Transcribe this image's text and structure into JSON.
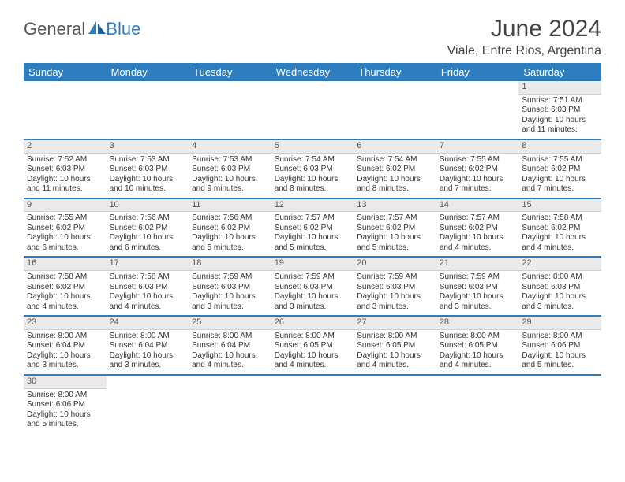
{
  "brand": {
    "part1": "General",
    "part2": "Blue",
    "icon_color": "#2e7dbf",
    "text1_color": "#555555"
  },
  "title": "June 2024",
  "location": "Viale, Entre Rios, Argentina",
  "colors": {
    "header_bg": "#2e7dbf",
    "header_fg": "#ffffff",
    "row_divider": "#2e7dbf"
  },
  "day_headers": [
    "Sunday",
    "Monday",
    "Tuesday",
    "Wednesday",
    "Thursday",
    "Friday",
    "Saturday"
  ],
  "weeks": [
    [
      null,
      null,
      null,
      null,
      null,
      null,
      {
        "n": "1",
        "sunrise": "Sunrise: 7:51 AM",
        "sunset": "Sunset: 6:03 PM",
        "day": "Daylight: 10 hours and 11 minutes."
      }
    ],
    [
      {
        "n": "2",
        "sunrise": "Sunrise: 7:52 AM",
        "sunset": "Sunset: 6:03 PM",
        "day": "Daylight: 10 hours and 11 minutes."
      },
      {
        "n": "3",
        "sunrise": "Sunrise: 7:53 AM",
        "sunset": "Sunset: 6:03 PM",
        "day": "Daylight: 10 hours and 10 minutes."
      },
      {
        "n": "4",
        "sunrise": "Sunrise: 7:53 AM",
        "sunset": "Sunset: 6:03 PM",
        "day": "Daylight: 10 hours and 9 minutes."
      },
      {
        "n": "5",
        "sunrise": "Sunrise: 7:54 AM",
        "sunset": "Sunset: 6:03 PM",
        "day": "Daylight: 10 hours and 8 minutes."
      },
      {
        "n": "6",
        "sunrise": "Sunrise: 7:54 AM",
        "sunset": "Sunset: 6:02 PM",
        "day": "Daylight: 10 hours and 8 minutes."
      },
      {
        "n": "7",
        "sunrise": "Sunrise: 7:55 AM",
        "sunset": "Sunset: 6:02 PM",
        "day": "Daylight: 10 hours and 7 minutes."
      },
      {
        "n": "8",
        "sunrise": "Sunrise: 7:55 AM",
        "sunset": "Sunset: 6:02 PM",
        "day": "Daylight: 10 hours and 7 minutes."
      }
    ],
    [
      {
        "n": "9",
        "sunrise": "Sunrise: 7:55 AM",
        "sunset": "Sunset: 6:02 PM",
        "day": "Daylight: 10 hours and 6 minutes."
      },
      {
        "n": "10",
        "sunrise": "Sunrise: 7:56 AM",
        "sunset": "Sunset: 6:02 PM",
        "day": "Daylight: 10 hours and 6 minutes."
      },
      {
        "n": "11",
        "sunrise": "Sunrise: 7:56 AM",
        "sunset": "Sunset: 6:02 PM",
        "day": "Daylight: 10 hours and 5 minutes."
      },
      {
        "n": "12",
        "sunrise": "Sunrise: 7:57 AM",
        "sunset": "Sunset: 6:02 PM",
        "day": "Daylight: 10 hours and 5 minutes."
      },
      {
        "n": "13",
        "sunrise": "Sunrise: 7:57 AM",
        "sunset": "Sunset: 6:02 PM",
        "day": "Daylight: 10 hours and 5 minutes."
      },
      {
        "n": "14",
        "sunrise": "Sunrise: 7:57 AM",
        "sunset": "Sunset: 6:02 PM",
        "day": "Daylight: 10 hours and 4 minutes."
      },
      {
        "n": "15",
        "sunrise": "Sunrise: 7:58 AM",
        "sunset": "Sunset: 6:02 PM",
        "day": "Daylight: 10 hours and 4 minutes."
      }
    ],
    [
      {
        "n": "16",
        "sunrise": "Sunrise: 7:58 AM",
        "sunset": "Sunset: 6:02 PM",
        "day": "Daylight: 10 hours and 4 minutes."
      },
      {
        "n": "17",
        "sunrise": "Sunrise: 7:58 AM",
        "sunset": "Sunset: 6:03 PM",
        "day": "Daylight: 10 hours and 4 minutes."
      },
      {
        "n": "18",
        "sunrise": "Sunrise: 7:59 AM",
        "sunset": "Sunset: 6:03 PM",
        "day": "Daylight: 10 hours and 3 minutes."
      },
      {
        "n": "19",
        "sunrise": "Sunrise: 7:59 AM",
        "sunset": "Sunset: 6:03 PM",
        "day": "Daylight: 10 hours and 3 minutes."
      },
      {
        "n": "20",
        "sunrise": "Sunrise: 7:59 AM",
        "sunset": "Sunset: 6:03 PM",
        "day": "Daylight: 10 hours and 3 minutes."
      },
      {
        "n": "21",
        "sunrise": "Sunrise: 7:59 AM",
        "sunset": "Sunset: 6:03 PM",
        "day": "Daylight: 10 hours and 3 minutes."
      },
      {
        "n": "22",
        "sunrise": "Sunrise: 8:00 AM",
        "sunset": "Sunset: 6:03 PM",
        "day": "Daylight: 10 hours and 3 minutes."
      }
    ],
    [
      {
        "n": "23",
        "sunrise": "Sunrise: 8:00 AM",
        "sunset": "Sunset: 6:04 PM",
        "day": "Daylight: 10 hours and 3 minutes."
      },
      {
        "n": "24",
        "sunrise": "Sunrise: 8:00 AM",
        "sunset": "Sunset: 6:04 PM",
        "day": "Daylight: 10 hours and 3 minutes."
      },
      {
        "n": "25",
        "sunrise": "Sunrise: 8:00 AM",
        "sunset": "Sunset: 6:04 PM",
        "day": "Daylight: 10 hours and 4 minutes."
      },
      {
        "n": "26",
        "sunrise": "Sunrise: 8:00 AM",
        "sunset": "Sunset: 6:05 PM",
        "day": "Daylight: 10 hours and 4 minutes."
      },
      {
        "n": "27",
        "sunrise": "Sunrise: 8:00 AM",
        "sunset": "Sunset: 6:05 PM",
        "day": "Daylight: 10 hours and 4 minutes."
      },
      {
        "n": "28",
        "sunrise": "Sunrise: 8:00 AM",
        "sunset": "Sunset: 6:05 PM",
        "day": "Daylight: 10 hours and 4 minutes."
      },
      {
        "n": "29",
        "sunrise": "Sunrise: 8:00 AM",
        "sunset": "Sunset: 6:06 PM",
        "day": "Daylight: 10 hours and 5 minutes."
      }
    ],
    [
      {
        "n": "30",
        "sunrise": "Sunrise: 8:00 AM",
        "sunset": "Sunset: 6:06 PM",
        "day": "Daylight: 10 hours and 5 minutes."
      },
      null,
      null,
      null,
      null,
      null,
      null
    ]
  ]
}
